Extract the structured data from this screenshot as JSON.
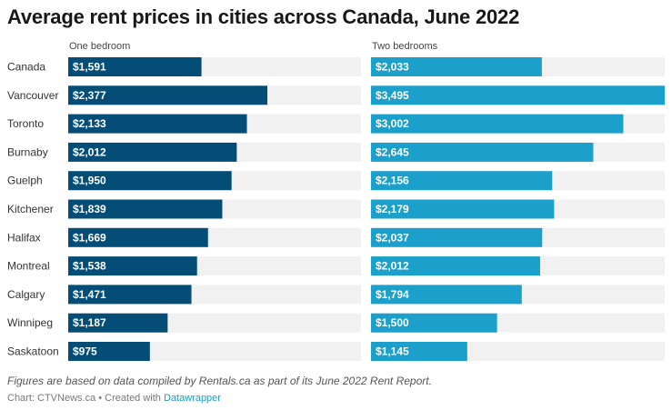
{
  "title": "Average rent prices in cities across Canada, June 2022",
  "notes": "Figures are based on data compiled by Rentals.ca as part of its June 2022 Rent Report.",
  "byline": {
    "prefix": "Chart: CTVNews.ca",
    "separator": " • Created with ",
    "link": "Datawrapper"
  },
  "colors": {
    "one_bedroom": "#044d76",
    "two_bedrooms": "#1aa0cb",
    "track": "#f1f1f1"
  },
  "chart_data": {
    "type": "bar",
    "orientation": "horizontal",
    "grid": false,
    "xlim": [
      0,
      3495
    ],
    "categories": [
      "Canada",
      "Vancouver",
      "Toronto",
      "Burnaby",
      "Guelph",
      "Kitchener",
      "Halifax",
      "Montreal",
      "Calgary",
      "Winnipeg",
      "Saskatoon"
    ],
    "series": [
      {
        "name": "One bedroom",
        "values": [
          1591,
          2377,
          2133,
          2012,
          1950,
          1839,
          1669,
          1538,
          1471,
          1187,
          975
        ],
        "labels": [
          "$1,591",
          "$2,377",
          "$2,133",
          "$2,012",
          "$1,950",
          "$1,839",
          "$1,669",
          "$1,538",
          "$1,471",
          "$1,187",
          "$975"
        ]
      },
      {
        "name": "Two bedrooms",
        "values": [
          2033,
          3495,
          3002,
          2645,
          2156,
          2179,
          2037,
          2012,
          1794,
          1500,
          1145
        ],
        "labels": [
          "$2,033",
          "$3,495",
          "$3,002",
          "$2,645",
          "$2,156",
          "$2,179",
          "$2,037",
          "$2,012",
          "$1,794",
          "$1,500",
          "$1,145"
        ]
      }
    ]
  }
}
